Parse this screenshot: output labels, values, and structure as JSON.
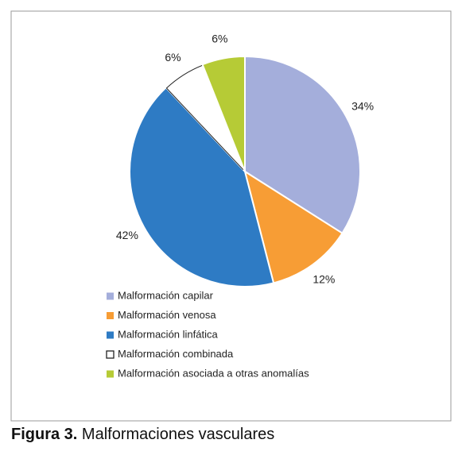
{
  "chart_data": {
    "type": "pie",
    "categories": [
      "Malformación capilar",
      "Malformación venosa",
      "Malformación linfática",
      "Malformación combinada",
      "Malformación asociada a otras anomalías"
    ],
    "values": [
      34,
      12,
      42,
      6,
      6
    ],
    "value_labels": [
      "34%",
      "12%",
      "42%",
      "6%",
      "6%"
    ],
    "colors": [
      "#a4aedb",
      "#f79d35",
      "#2e7bc4",
      "#ffffff",
      "#b6cb36"
    ],
    "legend": "bottom-left"
  },
  "figure": {
    "label": "Figura 3.",
    "caption": "Malformaciones vasculares"
  }
}
